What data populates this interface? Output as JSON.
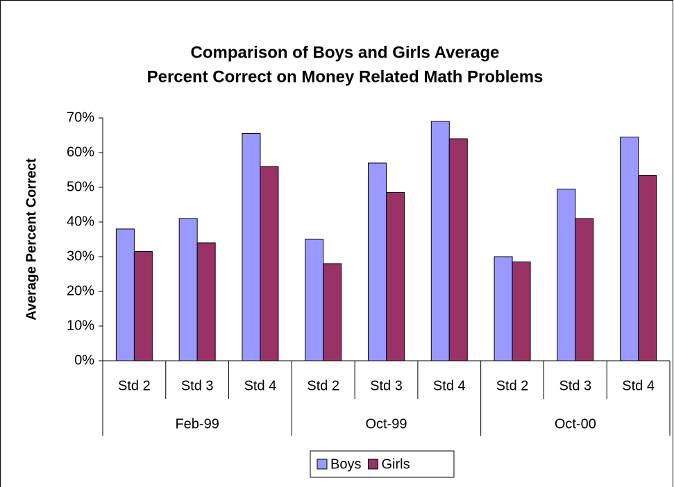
{
  "chart_data": {
    "type": "bar",
    "title": [
      "Comparison of Boys and Girls Average",
      "Percent Correct on Money Related Math Problems"
    ],
    "y_label": "Average Percent Correct",
    "categories": [
      "Std 2",
      "Std 3",
      "Std 4",
      "Std 2",
      "Std 3",
      "Std 4",
      "Std 2",
      "Std 3",
      "Std 4"
    ],
    "groups": [
      "Feb-99",
      "Oct-99",
      "Oct-00"
    ],
    "series": [
      {
        "name": "Boys",
        "color": "#9999ff",
        "values": [
          38,
          41,
          65.5,
          35,
          57,
          69,
          30,
          49.5,
          64.5
        ]
      },
      {
        "name": "Girls",
        "color": "#993366",
        "values": [
          31.5,
          34,
          56,
          28,
          48.5,
          64,
          28.5,
          41,
          53.5
        ]
      }
    ],
    "ylim": [
      0,
      70
    ],
    "yticks": [
      {
        "value": 0,
        "label": "0%"
      },
      {
        "value": 10,
        "label": "10%"
      },
      {
        "value": 20,
        "label": "20%"
      },
      {
        "value": 30,
        "label": "30%"
      },
      {
        "value": 40,
        "label": "40%"
      },
      {
        "value": 50,
        "label": "50%"
      },
      {
        "value": 60,
        "label": "60%"
      },
      {
        "value": 70,
        "label": "70%"
      }
    ],
    "legend": "bottom"
  }
}
